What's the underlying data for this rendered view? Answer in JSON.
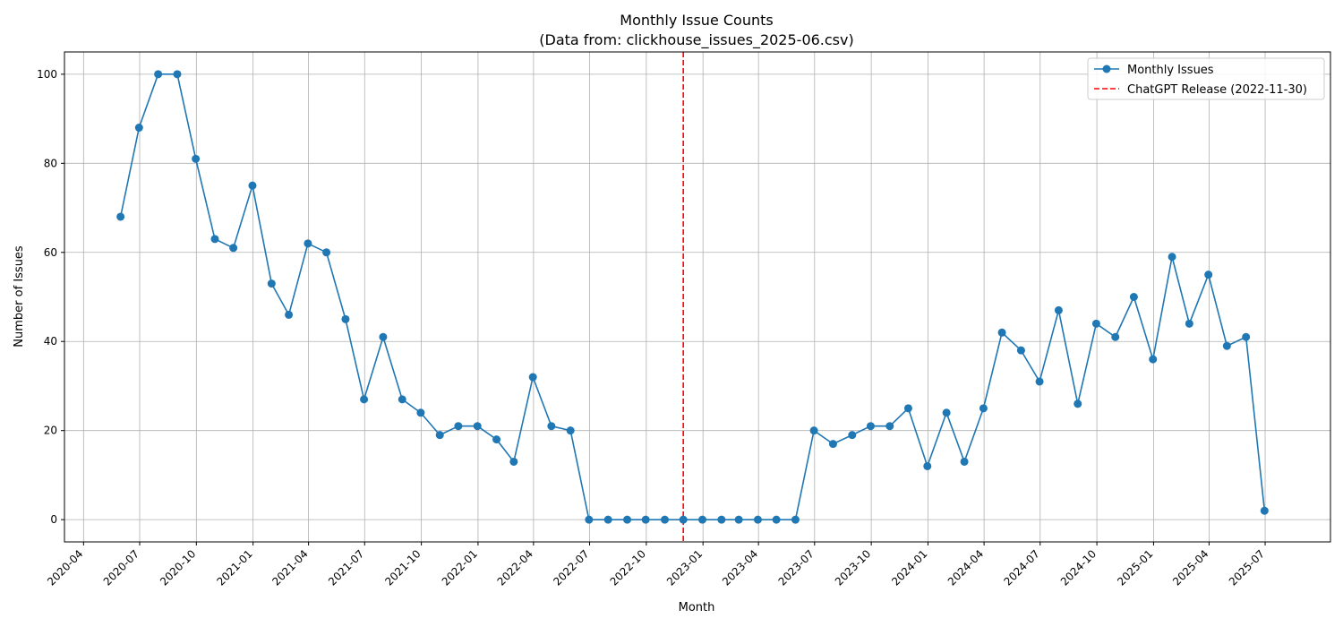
{
  "chart_data": {
    "type": "line",
    "title": "Monthly Issue Counts",
    "subtitle": "(Data from: clickhouse_issues_2025-06.csv)",
    "xlabel": "Month",
    "ylabel": "Number of Issues",
    "x_tick_labels": [
      "2020-04",
      "2020-07",
      "2020-10",
      "2021-01",
      "2021-04",
      "2021-07",
      "2021-10",
      "2022-01",
      "2022-04",
      "2022-07",
      "2022-10",
      "2023-01",
      "2023-04",
      "2023-07",
      "2023-10",
      "2024-01",
      "2024-04",
      "2024-07",
      "2024-10",
      "2025-01",
      "2025-04",
      "2025-07"
    ],
    "y_ticks": [
      0,
      20,
      40,
      60,
      80,
      100
    ],
    "ylim": [
      -5,
      105
    ],
    "xlim": [
      "2020-03-01",
      "2025-10-15"
    ],
    "grid": true,
    "legend_position": "top-right",
    "series": [
      {
        "name": "Monthly Issues",
        "color": "#1f77b4",
        "marker": "circle",
        "x": [
          "2020-05-31",
          "2020-06-30",
          "2020-07-31",
          "2020-08-31",
          "2020-09-30",
          "2020-10-31",
          "2020-11-30",
          "2020-12-31",
          "2021-01-31",
          "2021-02-28",
          "2021-03-31",
          "2021-04-30",
          "2021-05-31",
          "2021-06-30",
          "2021-07-31",
          "2021-08-31",
          "2021-09-30",
          "2021-10-31",
          "2021-11-30",
          "2021-12-31",
          "2022-01-31",
          "2022-02-28",
          "2022-03-31",
          "2022-04-30",
          "2022-05-31",
          "2022-06-30",
          "2022-07-31",
          "2022-08-31",
          "2022-09-30",
          "2022-10-31",
          "2022-11-30",
          "2022-12-31",
          "2023-01-31",
          "2023-02-28",
          "2023-03-31",
          "2023-04-30",
          "2023-05-31",
          "2023-06-30",
          "2023-07-31",
          "2023-08-31",
          "2023-09-30",
          "2023-10-31",
          "2023-11-30",
          "2023-12-31",
          "2024-01-31",
          "2024-02-29",
          "2024-03-31",
          "2024-04-30",
          "2024-05-31",
          "2024-06-30",
          "2024-07-31",
          "2024-08-31",
          "2024-09-30",
          "2024-10-31",
          "2024-11-30",
          "2024-12-31",
          "2025-01-31",
          "2025-02-28",
          "2025-03-31",
          "2025-04-30",
          "2025-05-31",
          "2025-06-30"
        ],
        "values": [
          68,
          88,
          100,
          100,
          81,
          63,
          61,
          75,
          53,
          46,
          62,
          60,
          45,
          27,
          41,
          27,
          24,
          19,
          21,
          21,
          18,
          13,
          32,
          21,
          20,
          0,
          0,
          0,
          0,
          0,
          0,
          0,
          0,
          0,
          0,
          0,
          0,
          20,
          17,
          19,
          21,
          21,
          25,
          12,
          24,
          13,
          25,
          42,
          38,
          31,
          47,
          26,
          44,
          41,
          50,
          36,
          59,
          44,
          55,
          39,
          41,
          2
        ]
      }
    ],
    "reference_lines": [
      {
        "name": "ChatGPT Release (2022-11-30)",
        "x": "2022-11-30",
        "color": "#ff0000",
        "style": "dashed"
      }
    ]
  }
}
